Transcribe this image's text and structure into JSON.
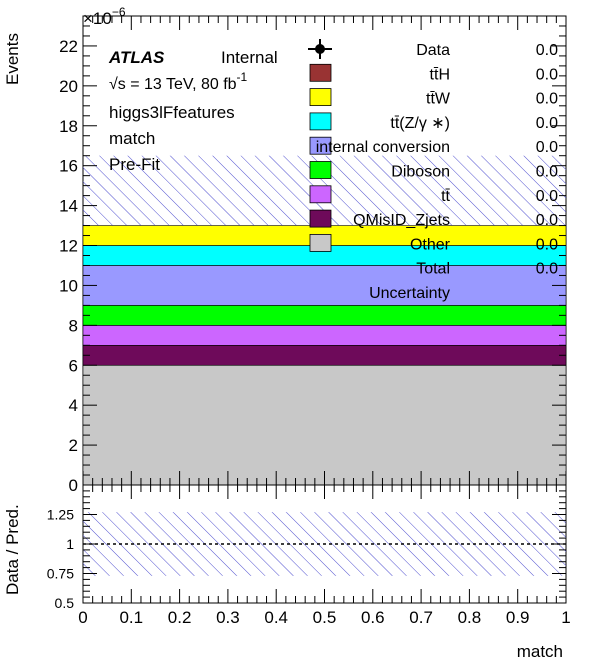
{
  "chart_data": {
    "type": "bar",
    "title": "",
    "xlabel": "match",
    "ylabel": "Events",
    "y_exponent_label": "×10",
    "y_exponent": "−6",
    "xlim": [
      0,
      1
    ],
    "ylim": [
      0,
      23.5
    ],
    "x_ticks": [
      "0",
      "0.1",
      "0.2",
      "0.3",
      "0.4",
      "0.5",
      "0.6",
      "0.7",
      "0.8",
      "0.9",
      "1"
    ],
    "y_ticks": [
      "0",
      "2",
      "4",
      "6",
      "8",
      "10",
      "12",
      "14",
      "16",
      "18",
      "20",
      "22"
    ],
    "stack_order_bottom_to_top": [
      "Other",
      "QMisID_Zjets",
      "tt",
      "Diboson",
      "Internal conversion",
      "ttZ",
      "ttW",
      "ttH"
    ],
    "series": [
      {
        "key": "Other",
        "legend": "Other",
        "color": "#c8c8c8",
        "values": [
          6.0
        ]
      },
      {
        "key": "QMisID_Zjets",
        "legend": "QMisID_Zjets",
        "color": "#6e0a5a",
        "values": [
          1.0
        ]
      },
      {
        "key": "tt",
        "legend": "tt̄",
        "color": "#cc66ff",
        "values": [
          1.0
        ]
      },
      {
        "key": "Diboson",
        "legend": "Diboson",
        "color": "#00ff00",
        "values": [
          1.0
        ]
      },
      {
        "key": "Internal conversion",
        "legend": "internal conversion",
        "color": "#9999ff",
        "values": [
          2.0
        ]
      },
      {
        "key": "ttZ",
        "legend": "tt̄(Z/γ ∗)",
        "color": "#00ffff",
        "values": [
          1.0
        ]
      },
      {
        "key": "ttW",
        "legend": "tt̄W",
        "color": "#ffff00",
        "values": [
          1.0
        ]
      },
      {
        "key": "ttH",
        "legend": "tt̄H",
        "color": "#993333",
        "values": [
          0.0
        ]
      }
    ],
    "data": {
      "legend": "Data",
      "value": 0.0
    },
    "total": {
      "legend": "Total",
      "value": 0.0
    },
    "uncertainty": {
      "legend": "Uncertainty",
      "band_top": 16.5
    },
    "legend_values": {
      "Data": "0.0",
      "ttH": "0.0",
      "ttW": "0.0",
      "ttZ": "0.0",
      "Internal conversion": "0.0",
      "Diboson": "0.0",
      "tt": "0.0",
      "QMisID_Zjets": "0.0",
      "Other": "0.0",
      "Total": "0.0"
    },
    "ratio": {
      "ylabel": "Data / Pred.",
      "ylim": [
        0.5,
        1.5
      ],
      "y_ticks": [
        "0.5",
        "0.75",
        "1",
        "1.25"
      ],
      "reference_line": 1.0,
      "band": [
        0.73,
        1.27
      ]
    }
  },
  "annotations": {
    "atlas": "ATLAS",
    "internal": "Internal",
    "energy": "√s = 13 TeV, 80 fb",
    "lumi_exp": "-1",
    "region": "higgs3lFfeatures",
    "variable": "match",
    "fit": "Pre-Fit"
  },
  "colors": {
    "uncertainty_hatch": "#4040cc",
    "data_marker": "#000000"
  }
}
